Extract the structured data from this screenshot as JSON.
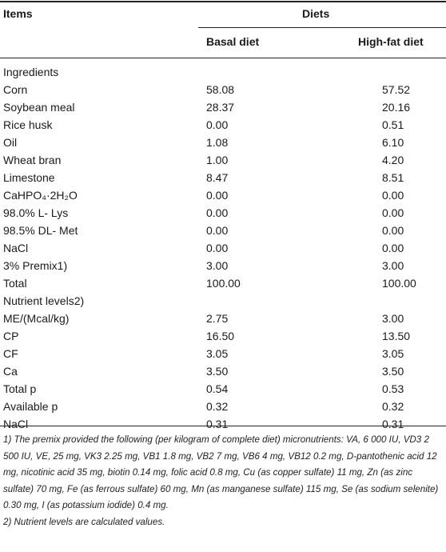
{
  "header": {
    "items": "Items",
    "diets": "Diets",
    "basal": "Basal diet",
    "highfat": "High-fat diet"
  },
  "rows": [
    {
      "label": "Ingredients",
      "basal": "",
      "high": ""
    },
    {
      "label": "Corn",
      "basal": "58.08",
      "high": "57.52"
    },
    {
      "label": "Soybean meal",
      "basal": "28.37",
      "high": "20.16"
    },
    {
      "label": "Rice husk",
      "basal": "0.00",
      "high": "0.51"
    },
    {
      "label": "Oil",
      "basal": "1.08",
      "high": "6.10"
    },
    {
      "label": "Wheat bran",
      "basal": "1.00",
      "high": "4.20"
    },
    {
      "label": "Limestone",
      "basal": "8.47",
      "high": "8.51"
    },
    {
      "label": "CaHPO₄·2H₂O",
      "basal": "0.00",
      "high": "0.00"
    },
    {
      "label": "98.0% L- Lys",
      "basal": "0.00",
      "high": "0.00"
    },
    {
      "label": "98.5% DL- Met",
      "basal": "0.00",
      "high": "0.00"
    },
    {
      "label": "NaCl",
      "basal": "0.00",
      "high": "0.00"
    },
    {
      "label": "3% Premix1)",
      "basal": "3.00",
      "high": "3.00"
    },
    {
      "label": "Total",
      "basal": "100.00",
      "high": "100.00"
    },
    {
      "label": "Nutrient levels2)",
      "basal": "",
      "high": ""
    },
    {
      "label": "ME/(Mcal/kg)",
      "basal": "2.75",
      "high": "3.00"
    },
    {
      "label": "CP",
      "basal": "16.50",
      "high": "13.50"
    },
    {
      "label": "CF",
      "basal": "3.05",
      "high": "3.05"
    },
    {
      "label": "Ca",
      "basal": "3.50",
      "high": "3.50"
    },
    {
      "label": "Total p",
      "basal": "0.54",
      "high": "0.53"
    },
    {
      "label": "Available p",
      "basal": "0.32",
      "high": "0.32"
    },
    {
      "label": "NaCl",
      "basal": "0.31",
      "high": "0.31"
    }
  ],
  "notes": {
    "note1": "1) The premix provided the following (per kilogram of complete diet) micronutrients: VA, 6 000 IU, VD3 2 500 IU, VE, 25 mg, VK3 2.25 mg, VB1 1.8 mg, VB2 7 mg, VB6 4 mg, VB12 0.2 mg, D-pantothenic acid 12 mg, nicotinic acid 35 mg, biotin 0.14 mg, folic acid 0.8 mg, Cu (as copper sulfate) 11 mg, Zn (as zinc sulfate) 70 mg, Fe (as ferrous sulfate) 60 mg, Mn (as manganese sulfate) 115 mg, Se (as sodium selenite) 0.30 mg, I (as potassium iodide) 0.4 mg.",
    "note2": "2) Nutrient levels are calculated values."
  }
}
